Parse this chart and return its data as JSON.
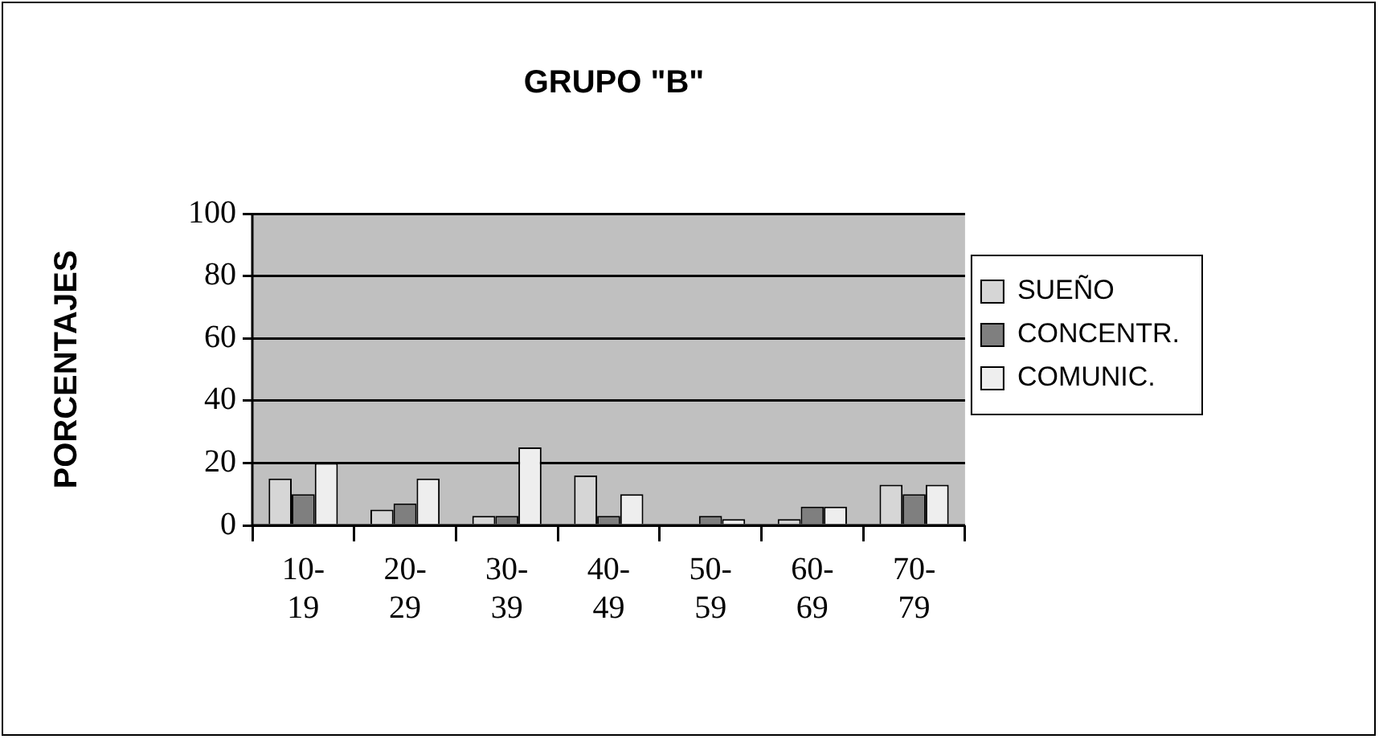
{
  "chart_data": {
    "type": "bar",
    "title": "GRUPO \"B\"",
    "ylabel": "PORCENTAJES",
    "categories": [
      "10-19",
      "20-29",
      "30-39",
      "40-49",
      "50-59",
      "60-69",
      "70-79"
    ],
    "series": [
      {
        "name": "SUEÑO",
        "color": "#d6d6d6",
        "values": [
          15,
          5,
          3,
          16,
          0,
          2,
          13
        ]
      },
      {
        "name": "CONCENTR.",
        "color": "#7f7f7f",
        "values": [
          10,
          7,
          3,
          3,
          3,
          6,
          10
        ]
      },
      {
        "name": "COMUNIC.",
        "color": "#eeeeee",
        "values": [
          20,
          15,
          25,
          10,
          2,
          6,
          13
        ]
      }
    ],
    "ylim": [
      0,
      100
    ],
    "yticks": [
      0,
      20,
      40,
      60,
      80,
      100
    ],
    "grid": "y",
    "legend": "right"
  }
}
